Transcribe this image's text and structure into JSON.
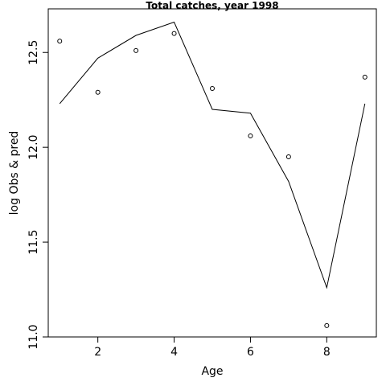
{
  "chart_data": {
    "type": "line",
    "title": "Total catches, year 1998",
    "xlabel": "Age",
    "ylabel": "log Obs & pred",
    "xlim": [
      0.7,
      9.3
    ],
    "ylim": [
      11.0,
      12.73
    ],
    "xticks": [
      2,
      4,
      6,
      8
    ],
    "xtick_labels": [
      "2",
      "4",
      "6",
      "8"
    ],
    "yticks": [
      11.0,
      11.5,
      12.0,
      12.5
    ],
    "ytick_labels": [
      "11.0",
      "11.5",
      "12.0",
      "12.5"
    ],
    "grid": false,
    "series": [
      {
        "style": "line",
        "color": "#000000",
        "x": [
          1,
          2,
          3,
          4,
          5,
          6,
          7,
          8,
          9
        ],
        "y": [
          12.23,
          12.47,
          12.59,
          12.66,
          12.2,
          12.18,
          11.82,
          11.26,
          12.23
        ]
      },
      {
        "style": "points",
        "color": "#000000",
        "x": [
          1,
          2,
          3,
          4,
          5,
          6,
          7,
          8,
          9
        ],
        "y": [
          12.56,
          12.29,
          12.51,
          12.6,
          12.31,
          12.06,
          11.95,
          11.06,
          12.37
        ]
      }
    ]
  }
}
